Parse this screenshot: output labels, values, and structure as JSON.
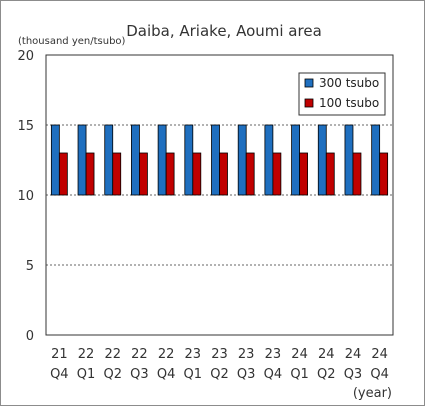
{
  "chart_data": {
    "type": "bar",
    "title": "Daiba, Ariake, Aoumi area",
    "ylabel": "(thousand yen/tsubo)",
    "xlabel": "(year)",
    "ylim": [
      0,
      20
    ],
    "yticks": [
      0,
      5,
      10,
      15,
      20
    ],
    "bar_base": 10,
    "grid": true,
    "legend_position": "top-right",
    "categories": [
      [
        "21",
        "Q4"
      ],
      [
        "22",
        "Q1"
      ],
      [
        "22",
        "Q2"
      ],
      [
        "22",
        "Q3"
      ],
      [
        "22",
        "Q4"
      ],
      [
        "23",
        "Q1"
      ],
      [
        "23",
        "Q2"
      ],
      [
        "23",
        "Q3"
      ],
      [
        "23",
        "Q4"
      ],
      [
        "24",
        "Q1"
      ],
      [
        "24",
        "Q2"
      ],
      [
        "24",
        "Q3"
      ],
      [
        "24",
        "Q4"
      ]
    ],
    "series": [
      {
        "name": "300 tsubo",
        "color": "#1f6fbf",
        "values": [
          15,
          15,
          15,
          15,
          15,
          15,
          15,
          15,
          15,
          15,
          15,
          15,
          15
        ]
      },
      {
        "name": "100 tsubo",
        "color": "#c00000",
        "values": [
          13,
          13,
          13,
          13,
          13,
          13,
          13,
          13,
          13,
          13,
          13,
          13,
          13
        ]
      }
    ]
  }
}
